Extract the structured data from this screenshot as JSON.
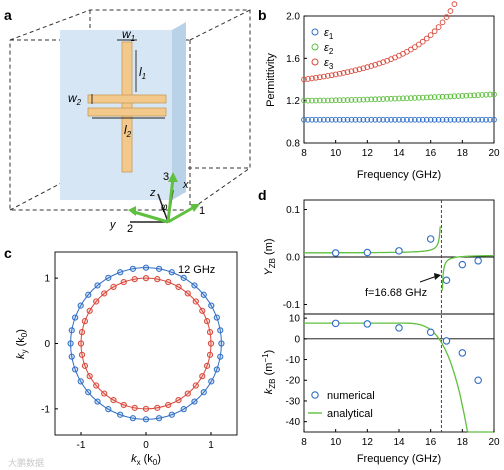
{
  "panels": {
    "a": {
      "label": "a",
      "dims": [
        "w",
        "1",
        "l",
        "1",
        "w",
        "2",
        "l",
        "2"
      ],
      "axes": [
        "x",
        "y",
        "z",
        "1",
        "2",
        "3",
        "φ"
      ]
    },
    "b": {
      "label": "b"
    },
    "c": {
      "label": "c",
      "annotation": "12 GHz"
    },
    "d": {
      "label": "d",
      "annotation": "f=16.68 GHz"
    }
  },
  "watermark": "大鹏数据",
  "colors": {
    "glass": "#d6e6f4",
    "strip": "#f3c98b",
    "stripEdge": "#c99a55",
    "blue": "#2f6ec4",
    "green": "#5fbf3e",
    "red": "#d9473a",
    "dash": "#9a1a3a"
  },
  "chart_data": [
    {
      "panel": "b",
      "type": "scatter",
      "xlabel": "Frequency (GHz)",
      "ylabel": "Permittivity",
      "xlim": [
        8,
        20
      ],
      "ylim": [
        0.8,
        2.0
      ],
      "xticks": [
        8,
        10,
        12,
        14,
        16,
        18,
        20
      ],
      "yticks": [
        0.8,
        1.2,
        1.6,
        2.0
      ],
      "ytick_labels": [
        "0.8",
        "1.2",
        "1.6",
        "2.0"
      ],
      "legend": "top-left",
      "n_points": 49,
      "series": [
        {
          "name": "ε",
          "sub": "1",
          "color": "blue",
          "fn": "flat",
          "params": [
            1.02
          ]
        },
        {
          "name": "ε",
          "sub": "2",
          "color": "green",
          "fn": "rise",
          "params": [
            1.2,
            0.06,
            1.55
          ]
        },
        {
          "name": "ε",
          "sub": "3",
          "color": "red",
          "fn": "pole",
          "params": [
            1.4,
            1.0,
            21.0,
            0.55
          ]
        }
      ]
    },
    {
      "panel": "c",
      "type": "scatter",
      "xlabel": "k",
      "xlabel_sub": "x",
      "xlabel_unit": "(k",
      "xlabel_unit_sub": "0",
      "ylabel": "k",
      "ylabel_sub": "y",
      "xlim": [
        -1.4,
        1.4
      ],
      "ylim": [
        -1.4,
        1.4
      ],
      "xticks": [
        -1,
        0,
        1
      ],
      "yticks": [
        -1,
        0,
        1
      ],
      "series": [
        {
          "name": "outer",
          "color": "blue",
          "radius": 1.16,
          "points": 36
        },
        {
          "name": "inner",
          "color": "red",
          "radius": 1.0,
          "points": 36
        }
      ]
    },
    {
      "panel": "d-top",
      "type": "line",
      "ylabel": "Y",
      "ylabel_sub": "ZB",
      "ylabel_unit": "(m)",
      "xlim": [
        8,
        20
      ],
      "ylim": [
        -0.12,
        0.12
      ],
      "yticks": [
        -0.1,
        0,
        0.1
      ],
      "ytick_labels": [
        "-0.1",
        "0.0",
        "0.1"
      ],
      "resonance": 16.68,
      "curve_params": [
        0.00825,
        0.03
      ],
      "numerical": [
        {
          "x": 10,
          "y": 0.0085
        },
        {
          "x": 12,
          "y": 0.0095
        },
        {
          "x": 14,
          "y": 0.013
        },
        {
          "x": 16,
          "y": 0.038
        },
        {
          "x": 17,
          "y": -0.049
        },
        {
          "x": 18,
          "y": -0.016
        },
        {
          "x": 19,
          "y": -0.008
        }
      ]
    },
    {
      "panel": "d-bottom",
      "type": "line",
      "xlabel": "Frequency (GHz)",
      "ylabel": "k",
      "ylabel_sub": "ZB",
      "ylabel_unit": "(m",
      "ylabel_unit_sup": "−1",
      "xlim": [
        8,
        20
      ],
      "ylim": [
        -45,
        12
      ],
      "xticks": [
        8,
        10,
        12,
        14,
        16,
        18,
        20
      ],
      "yticks": [
        -40,
        -30,
        -20,
        -10,
        0,
        10
      ],
      "legend_entries": [
        "numerical",
        "analytical"
      ],
      "curve_params": [
        7.6,
        30,
        14.0,
        3.6
      ],
      "numerical": [
        {
          "x": 10,
          "y": 7.5
        },
        {
          "x": 12,
          "y": 7.2
        },
        {
          "x": 14,
          "y": 5.3
        },
        {
          "x": 16,
          "y": 3.2
        },
        {
          "x": 17,
          "y": -1.0
        },
        {
          "x": 18,
          "y": -6.8
        },
        {
          "x": 19,
          "y": -20.0
        }
      ]
    }
  ]
}
